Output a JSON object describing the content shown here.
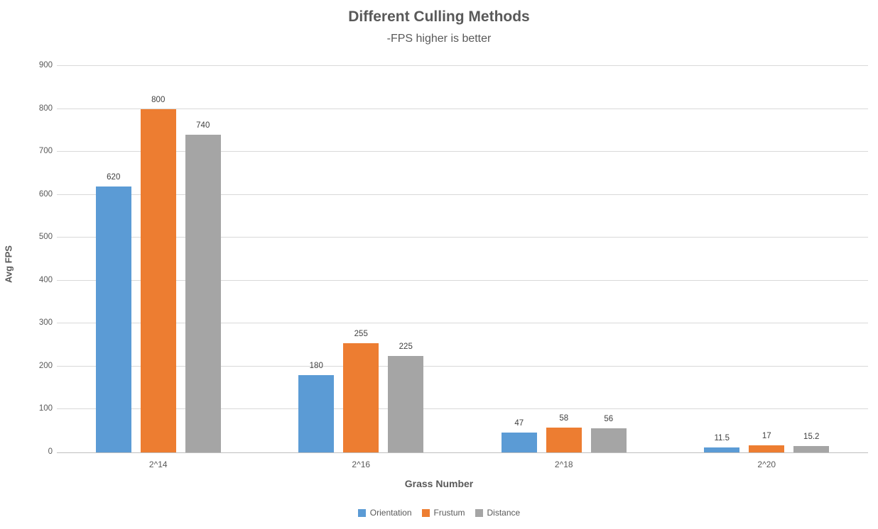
{
  "chart_data": {
    "type": "bar",
    "title": "Different Culling Methods",
    "subtitle": "-FPS higher is better",
    "xlabel": "Grass Number",
    "ylabel": "Avg FPS",
    "categories": [
      "2^14",
      "2^16",
      "2^18",
      "2^20"
    ],
    "series": [
      {
        "name": "Orientation",
        "color": "#5B9BD5",
        "values": [
          620,
          180,
          47,
          11.5
        ]
      },
      {
        "name": "Frustum",
        "color": "#ED7D31",
        "values": [
          800,
          255,
          58,
          17
        ]
      },
      {
        "name": "Distance",
        "color": "#A5A5A5",
        "values": [
          740,
          225,
          56,
          15.2
        ]
      }
    ],
    "ylim": [
      0,
      900
    ],
    "ytick_step": 100,
    "grid": true,
    "legend_position": "bottom",
    "data_labels": true,
    "colors": {
      "text": "#595959",
      "data_label": "#404040",
      "gridline": "#D9D9D9",
      "axis_line": "#BFBFBF",
      "background": "#FFFFFF"
    }
  }
}
